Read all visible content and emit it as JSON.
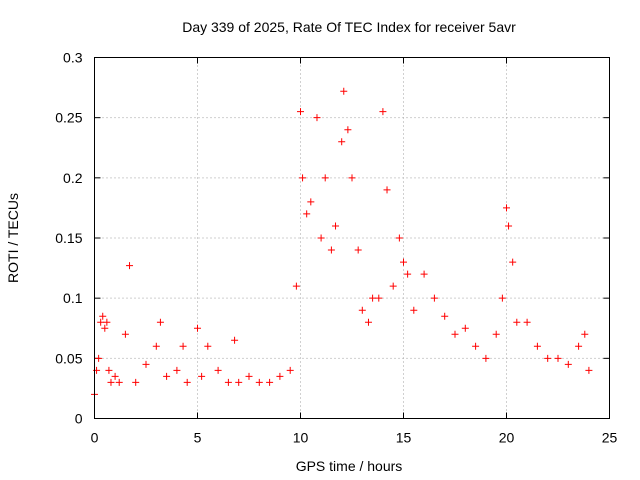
{
  "chart_data": {
    "type": "scatter",
    "title": "Day 339 of 2025, Rate Of TEC Index for receiver 5avr",
    "xlabel": "GPS time / hours",
    "ylabel": "ROTI / TECUs",
    "xlim": [
      0,
      25
    ],
    "ylim": [
      0,
      0.3
    ],
    "xticks": [
      "0",
      "5",
      "10",
      "15",
      "20",
      "25"
    ],
    "yticks": [
      "0",
      "0.05",
      "0.1",
      "0.15",
      "0.2",
      "0.25",
      "0.3"
    ],
    "grid": true,
    "marker": "plus",
    "color": "#ff0000",
    "series": [
      {
        "x": [
          0.0,
          0.1,
          0.2,
          0.3,
          0.4,
          0.5,
          0.6,
          0.7,
          0.8,
          1.0,
          1.2,
          1.5,
          1.7,
          2.0,
          2.5,
          3.0,
          3.2,
          3.5,
          4.0,
          4.3,
          4.5,
          5.0,
          5.2,
          5.5,
          6.0,
          6.5,
          6.8,
          7.0,
          7.5,
          8.0,
          8.5,
          9.0,
          9.5,
          9.8,
          10.0,
          10.1,
          10.3,
          10.5,
          10.8,
          11.0,
          11.2,
          11.5,
          11.7,
          12.0,
          12.1,
          12.3,
          12.5,
          12.8,
          13.0,
          13.3,
          13.5,
          13.8,
          14.0,
          14.2,
          14.5,
          14.8,
          15.0,
          15.2,
          15.5,
          16.0,
          16.5,
          17.0,
          17.5,
          18.0,
          18.5,
          19.0,
          19.5,
          19.8,
          20.0,
          20.1,
          20.3,
          20.5,
          21.0,
          21.5,
          22.0,
          22.5,
          23.0,
          23.5,
          23.8,
          24.0
        ],
        "y": [
          0.02,
          0.04,
          0.05,
          0.08,
          0.085,
          0.075,
          0.08,
          0.04,
          0.03,
          0.035,
          0.03,
          0.07,
          0.127,
          0.03,
          0.045,
          0.06,
          0.08,
          0.035,
          0.04,
          0.06,
          0.03,
          0.075,
          0.035,
          0.06,
          0.04,
          0.03,
          0.065,
          0.03,
          0.035,
          0.03,
          0.03,
          0.035,
          0.04,
          0.11,
          0.255,
          0.2,
          0.17,
          0.18,
          0.25,
          0.15,
          0.2,
          0.14,
          0.16,
          0.23,
          0.272,
          0.24,
          0.2,
          0.14,
          0.09,
          0.08,
          0.1,
          0.1,
          0.255,
          0.19,
          0.11,
          0.15,
          0.13,
          0.12,
          0.09,
          0.12,
          0.1,
          0.085,
          0.07,
          0.075,
          0.06,
          0.05,
          0.07,
          0.1,
          0.175,
          0.16,
          0.13,
          0.08,
          0.08,
          0.06,
          0.05,
          0.05,
          0.045,
          0.06,
          0.07,
          0.04
        ]
      }
    ]
  }
}
